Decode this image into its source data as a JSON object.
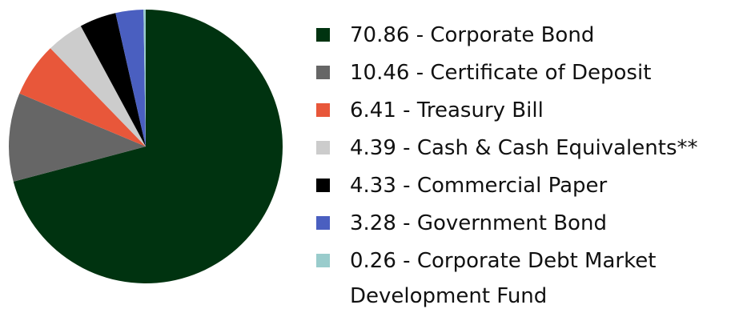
{
  "chart_data": {
    "type": "pie",
    "categories": [
      "Corporate Bond",
      "Certificate of Deposit",
      "Treasury Bill",
      "Cash & Cash Equivalents**",
      "Commercial Paper",
      "Government Bond",
      "Corporate Debt Market Development Fund"
    ],
    "values": [
      70.86,
      10.46,
      6.41,
      4.39,
      4.33,
      3.28,
      0.26
    ],
    "colors": [
      "#003310",
      "#666666",
      "#e8573a",
      "#cccccc",
      "#000000",
      "#4a5fc0",
      "#99cccc"
    ],
    "legend_separator": " - ",
    "legend": "right"
  }
}
